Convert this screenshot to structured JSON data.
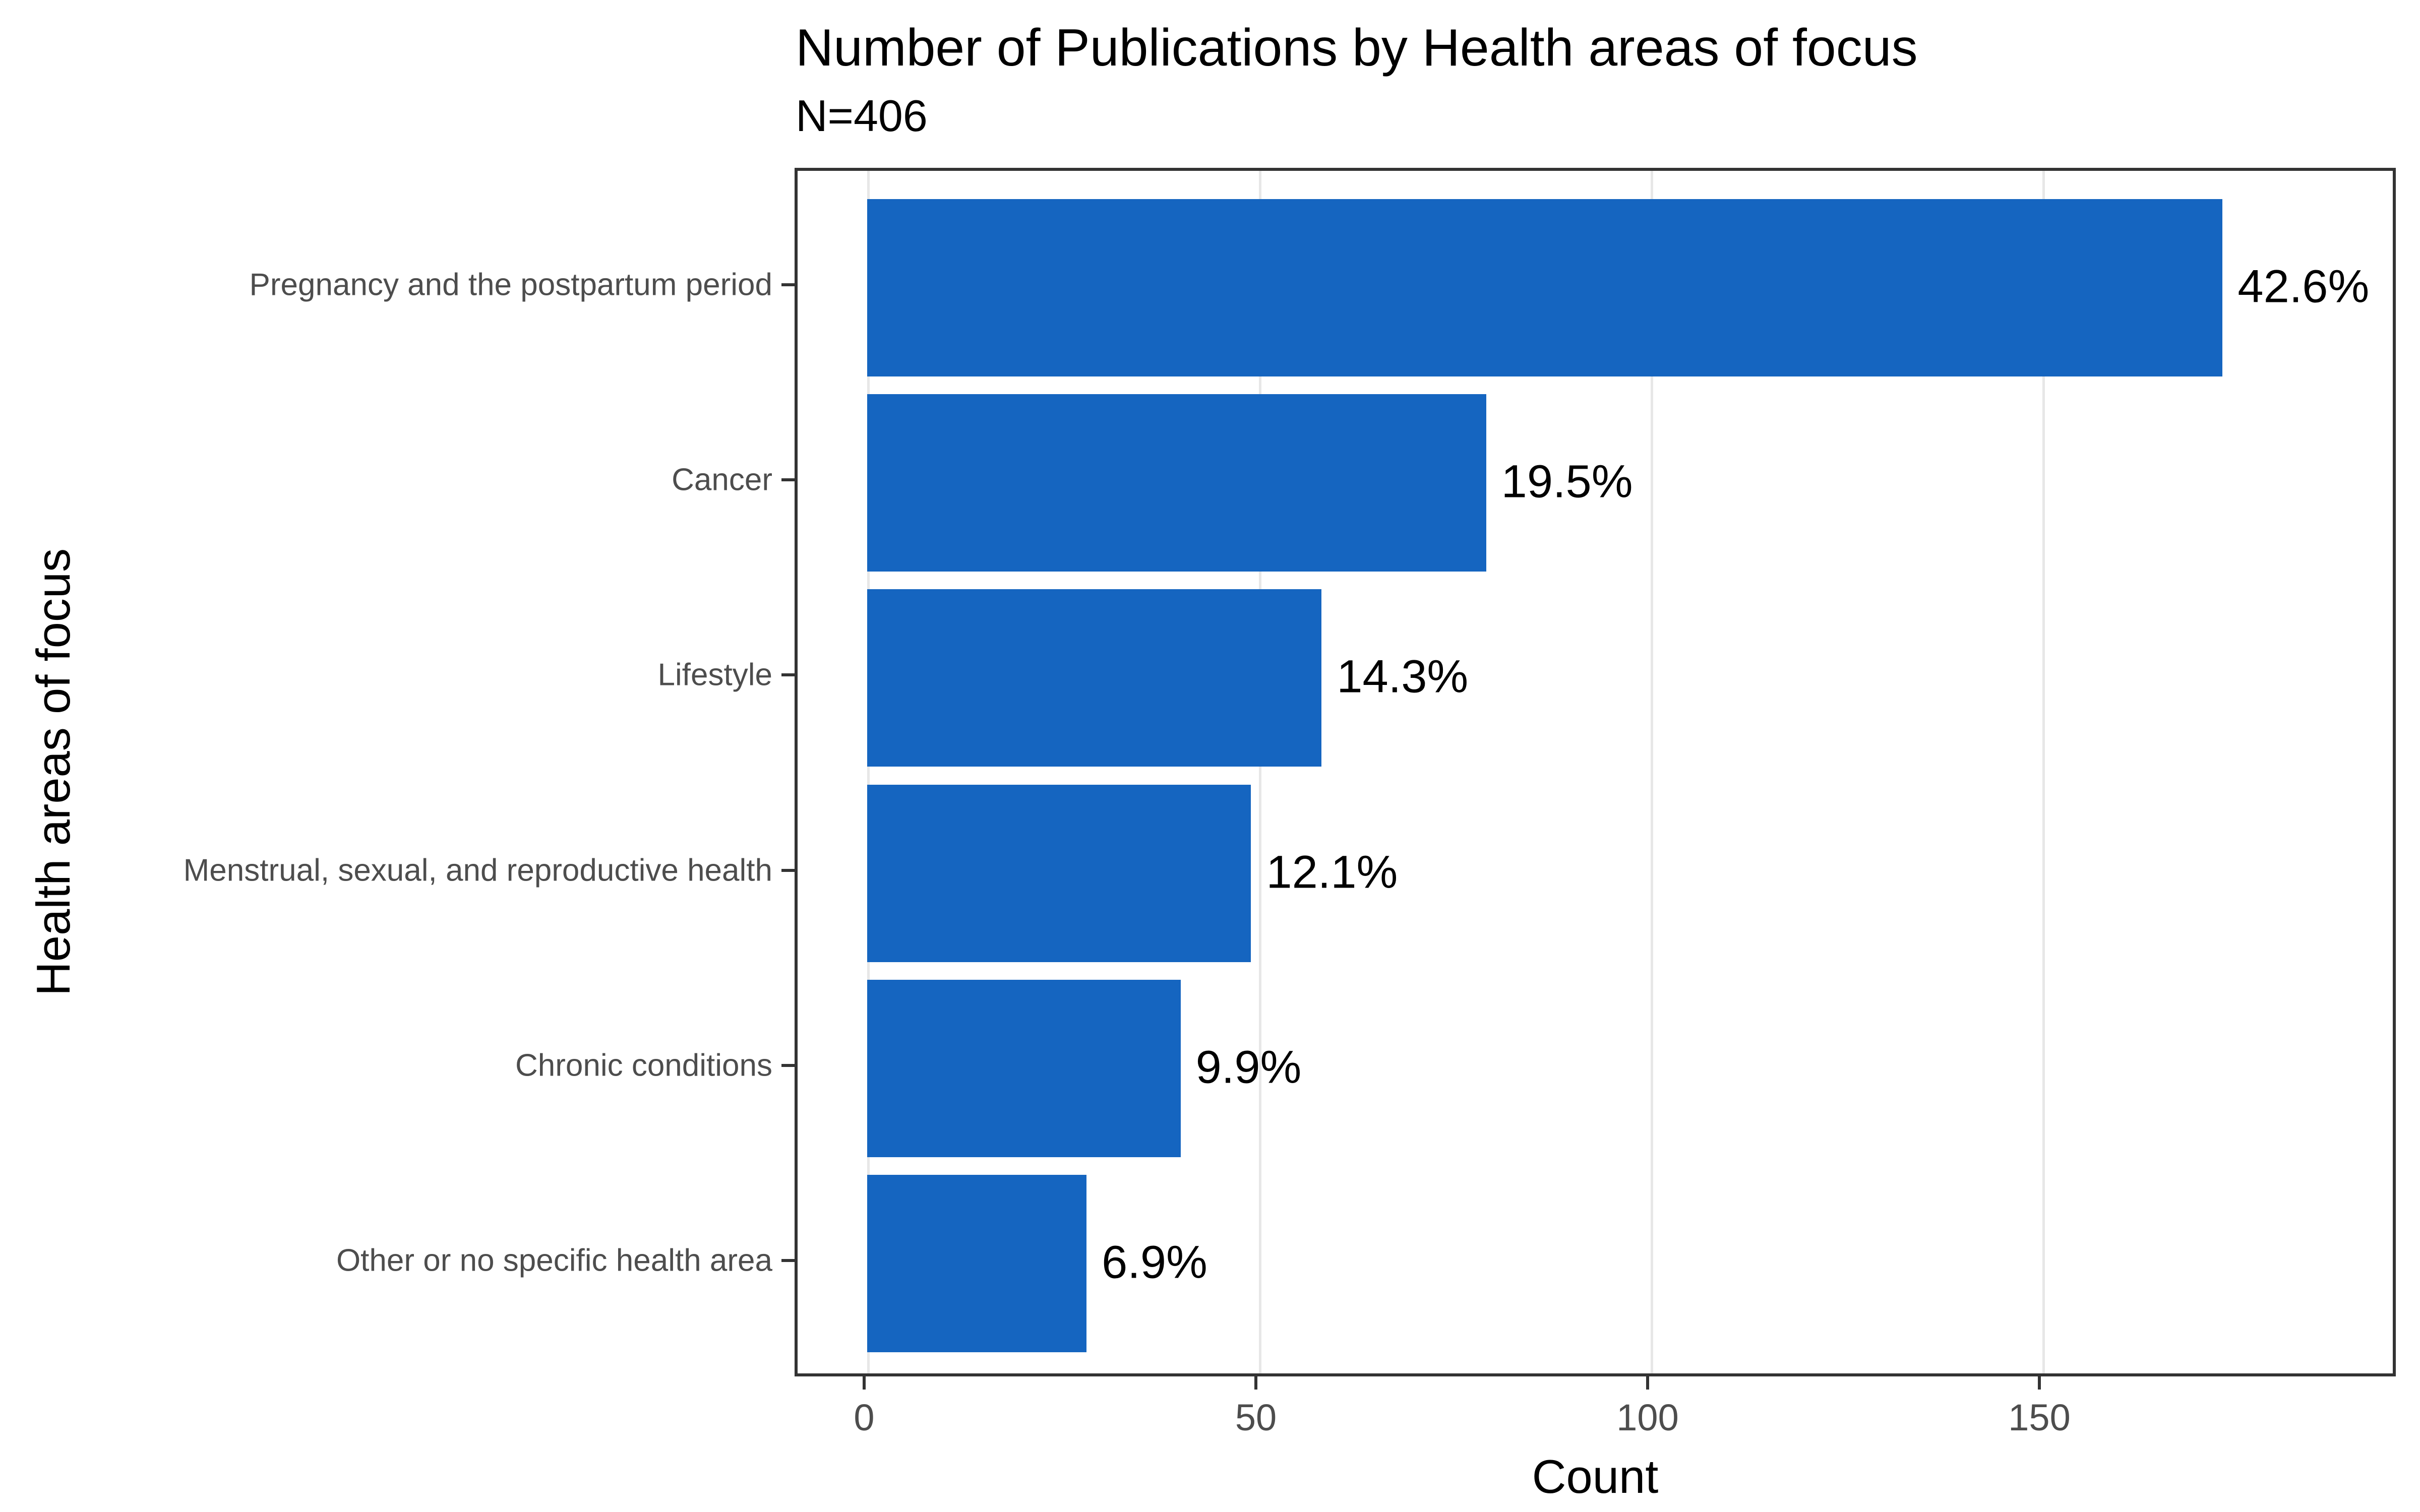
{
  "chart_data": {
    "type": "bar",
    "orientation": "horizontal",
    "title": "Number of Publications by Health areas of focus",
    "subtitle": "N=406",
    "n_total": 406,
    "xlabel": "Count",
    "ylabel": "Health areas of focus",
    "categories": [
      "Pregnancy and the postpartum period",
      "Cancer",
      "Lifestyle",
      "Menstrual, sexual, and reproductive health",
      "Chronic conditions",
      "Other or no specific health area"
    ],
    "values": [
      173,
      79,
      58,
      49,
      40,
      28
    ],
    "percent_labels": [
      "42.6%",
      "19.5%",
      "14.3%",
      "12.1%",
      "9.9%",
      "6.9%"
    ],
    "x_ticks": [
      "0",
      "50",
      "100",
      "150"
    ],
    "x_tick_values": [
      0,
      50,
      100,
      150
    ],
    "xlim": [
      -9,
      196
    ],
    "grid": "major-vertical-only",
    "legend": "none",
    "bar_color": "#1565c0"
  },
  "colors": {
    "bar": "#1565c0",
    "panel_border": "#333333",
    "gridline": "#e7e7e7",
    "axis_text": "#4d4d4d",
    "text": "#000000",
    "background": "#ffffff"
  }
}
